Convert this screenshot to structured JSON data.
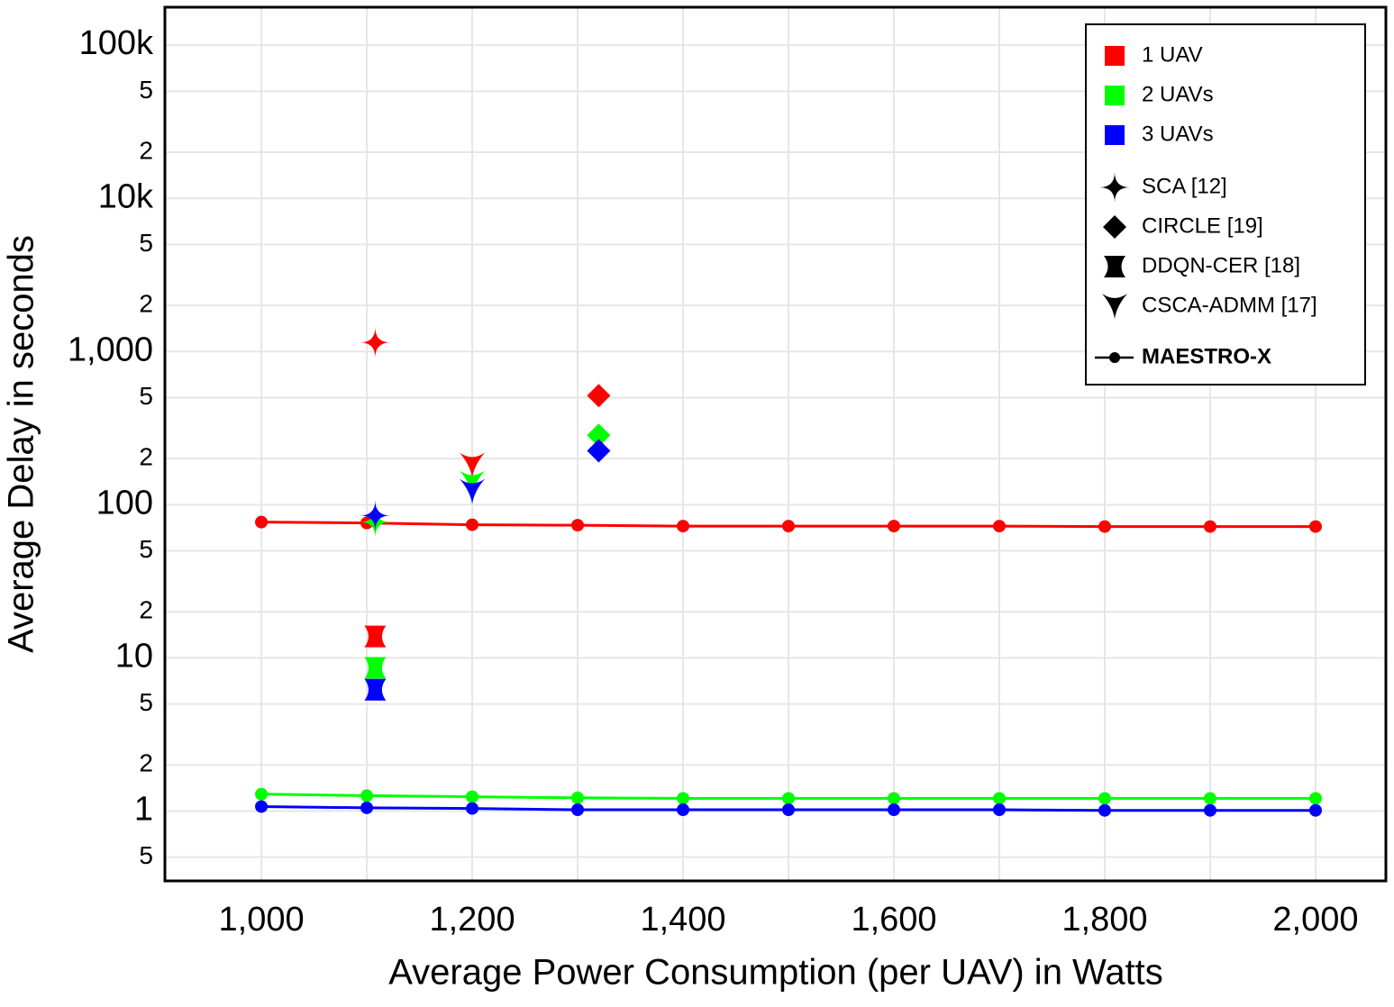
{
  "chart_data": {
    "type": "line",
    "x_label": "Average Power Consumption (per UAV) in Watts",
    "y_label": "Average Delay in seconds",
    "log_y": true,
    "grid": true,
    "legend": "top-right",
    "xlim": [
      908.5,
      2066.7
    ],
    "ylim": [
      0.35,
      177000
    ],
    "xticks": [
      {
        "value": 1000,
        "label": "1,000"
      },
      {
        "value": 1200,
        "label": "1,200"
      },
      {
        "value": 1400,
        "label": "1,400"
      },
      {
        "value": 1600,
        "label": "1,600"
      },
      {
        "value": 1800,
        "label": "1,800"
      },
      {
        "value": 2000,
        "label": "2,000"
      }
    ],
    "xgrid": [
      1100,
      1300,
      1500,
      1700,
      1900
    ],
    "yticks": [
      {
        "value": 0.5,
        "label": "5"
      },
      1,
      {
        "value": 2,
        "label": "2"
      },
      {
        "value": 5,
        "label": "5"
      },
      10,
      {
        "value": 20,
        "label": "2"
      },
      {
        "value": 50,
        "label": "5"
      },
      100,
      {
        "value": 200,
        "label": "2"
      },
      {
        "value": 500,
        "label": "5"
      },
      {
        "value": 1000,
        "label": "1,000"
      },
      {
        "value": 2000,
        "label": "2"
      },
      {
        "value": 5000,
        "label": "5"
      },
      {
        "value": 10000,
        "label": "10k"
      },
      {
        "value": 20000,
        "label": "2"
      },
      {
        "value": 50000,
        "label": "5"
      },
      {
        "value": 100000,
        "label": "100k"
      }
    ],
    "line_label": "MAESTRO-X",
    "series": [
      {
        "name": "1 UAV",
        "color": "#ff0000",
        "x": [
          1000,
          1100,
          1200,
          1300,
          1400,
          1500,
          1600,
          1700,
          1800,
          1900,
          2000
        ],
        "values": [
          77,
          76,
          74,
          73.5,
          72.5,
          72.5,
          72.5,
          72.5,
          72,
          72,
          72
        ]
      },
      {
        "name": "2 UAVs",
        "color": "#00ff00",
        "x": [
          1000,
          1100,
          1200,
          1300,
          1400,
          1500,
          1600,
          1700,
          1800,
          1900,
          2000
        ],
        "values": [
          1.29,
          1.26,
          1.24,
          1.22,
          1.21,
          1.21,
          1.21,
          1.21,
          1.21,
          1.21,
          1.21
        ]
      },
      {
        "name": "3 UAVs",
        "color": "#0000ff",
        "x": [
          1000,
          1100,
          1200,
          1300,
          1400,
          1500,
          1600,
          1700,
          1800,
          1900,
          2000
        ],
        "values": [
          1.07,
          1.05,
          1.04,
          1.02,
          1.02,
          1.02,
          1.02,
          1.02,
          1.01,
          1.01,
          1.01
        ]
      }
    ],
    "methods": [
      {
        "name": "SCA [12]",
        "marker": "star",
        "x": [
          1108,
          1108,
          1108
        ],
        "values": [
          1145,
          77,
          85
        ]
      },
      {
        "name": "CIRCLE [19]",
        "marker": "diamond",
        "x": [
          1320,
          1320,
          1320
        ],
        "values": [
          515,
          284,
          225
        ]
      },
      {
        "name": "DDQN-CER [18]",
        "marker": "hourglass",
        "x": [
          1108,
          1108,
          1108
        ],
        "values": [
          13.8,
          8.6,
          6.2
        ]
      },
      {
        "name": "CSCA-ADMM [17]",
        "marker": "arrowhead",
        "x": [
          1200,
          1200,
          1200
        ],
        "values": [
          181,
          138,
          122
        ]
      }
    ]
  }
}
